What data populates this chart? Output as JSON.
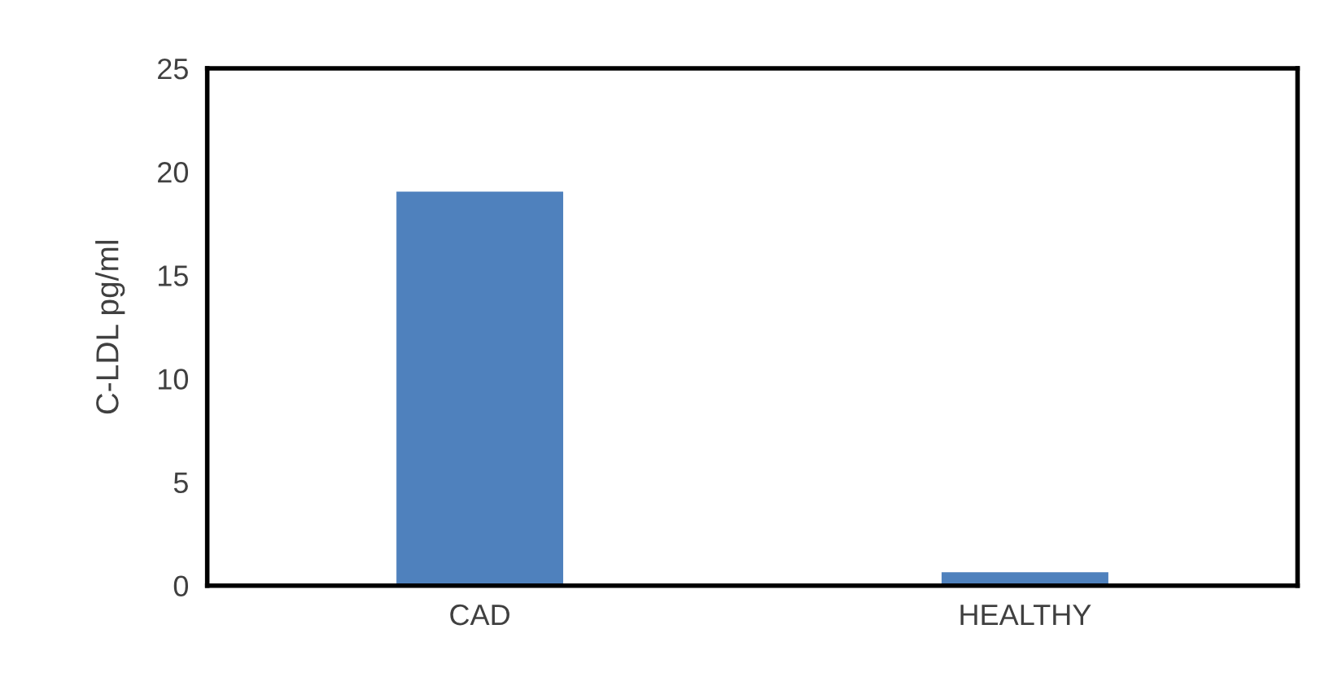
{
  "chart_data": {
    "type": "bar",
    "ylabel": "C-LDL pg/ml",
    "categories": [
      "CAD",
      "HEALTHY"
    ],
    "values": [
      19.1,
      0.7
    ],
    "color": "#4f81bd",
    "ylim": [
      0,
      25
    ],
    "yticks": [
      0,
      5,
      10,
      15,
      20,
      25
    ],
    "grid": false
  }
}
